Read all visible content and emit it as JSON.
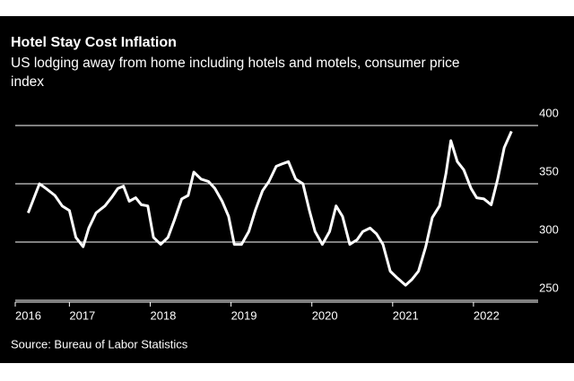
{
  "chart_data": {
    "type": "line",
    "title": "Hotel Stay Cost Inflation",
    "subtitle": [
      "US lodging away from home including hotels and motels, consumer price",
      "index"
    ],
    "source": "Source: Bureau of Labor Statistics",
    "x": [
      2016.49,
      2016.63,
      2016.71,
      2016.82,
      2016.91,
      2017.0,
      2017.08,
      2017.17,
      2017.24,
      2017.33,
      2017.44,
      2017.52,
      2017.6,
      2017.67,
      2017.74,
      2017.82,
      2017.89,
      2017.97,
      2018.04,
      2018.13,
      2018.22,
      2018.3,
      2018.39,
      2018.47,
      2018.54,
      2018.63,
      2018.72,
      2018.8,
      2018.89,
      2018.97,
      2019.04,
      2019.13,
      2019.22,
      2019.3,
      2019.39,
      2019.47,
      2019.56,
      2019.63,
      2019.71,
      2019.8,
      2019.89,
      2019.97,
      2020.04,
      2020.13,
      2020.22,
      2020.3,
      2020.38,
      2020.47,
      2020.56,
      2020.63,
      2020.72,
      2020.8,
      2020.88,
      2020.97,
      2021.06,
      2021.16,
      2021.24,
      2021.32,
      2021.41,
      2021.49,
      2021.58,
      2021.66,
      2021.72,
      2021.8,
      2021.88,
      2021.97,
      2022.04,
      2022.13,
      2022.22,
      2022.3,
      2022.38,
      2022.47
    ],
    "series": [
      {
        "color": "#ffffff",
        "values": [
          325,
          350,
          346,
          340,
          331,
          327,
          304,
          296,
          312,
          325,
          331,
          338,
          346,
          348,
          335,
          338,
          332,
          331,
          304,
          298,
          304,
          319,
          337,
          340,
          360,
          354,
          352,
          346,
          335,
          322,
          298,
          298,
          309,
          327,
          344,
          352,
          365,
          367,
          369,
          354,
          350,
          327,
          309,
          298,
          309,
          331,
          322,
          298,
          302,
          309,
          312,
          307,
          298,
          275,
          269,
          263,
          268,
          275,
          296,
          321,
          331,
          359,
          387,
          369,
          362,
          346,
          338,
          337,
          332,
          354,
          381,
          395
        ]
      }
    ],
    "xlim": [
      2016.33,
      2022.8
    ],
    "xticks": [
      {
        "value": 2016.33,
        "label": "2016"
      },
      2017,
      2018,
      2019,
      2020,
      2021,
      2022
    ],
    "ylim": [
      250,
      400
    ],
    "yticks": [
      250,
      300,
      350,
      400
    ],
    "grid": true
  }
}
